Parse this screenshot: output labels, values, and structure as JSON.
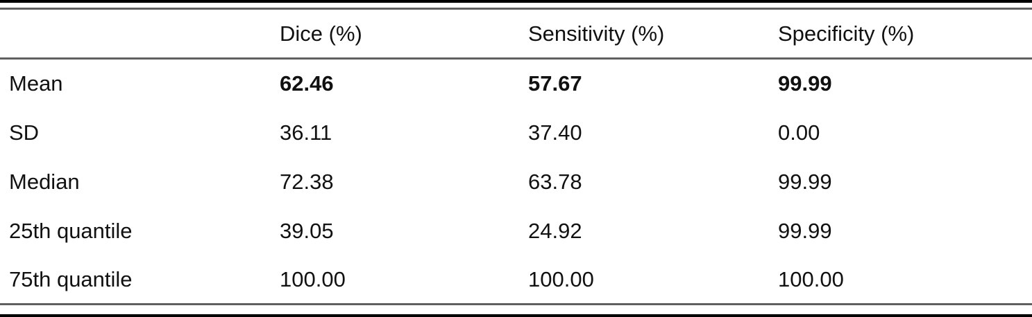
{
  "colors": {
    "background": "#ffffff",
    "frame_bar": "#000000",
    "rule": "#5f5f5f",
    "text": "#111111"
  },
  "chart_data": {
    "type": "table",
    "columns": [
      "",
      "Dice (%)",
      "Sensitivity (%)",
      "Specificity (%)"
    ],
    "rows": [
      {
        "label": "Mean",
        "values": [
          "62.46",
          "57.67",
          "99.99"
        ],
        "bold": true
      },
      {
        "label": "SD",
        "values": [
          "36.11",
          "37.40",
          "0.00"
        ],
        "bold": false
      },
      {
        "label": "Median",
        "values": [
          "72.38",
          "63.78",
          "99.99"
        ],
        "bold": false
      },
      {
        "label": "25th quantile",
        "values": [
          "39.05",
          "24.92",
          "99.99"
        ],
        "bold": false
      },
      {
        "label": "75th quantile",
        "values": [
          "100.00",
          "100.00",
          "100.00"
        ],
        "bold": false
      }
    ]
  }
}
